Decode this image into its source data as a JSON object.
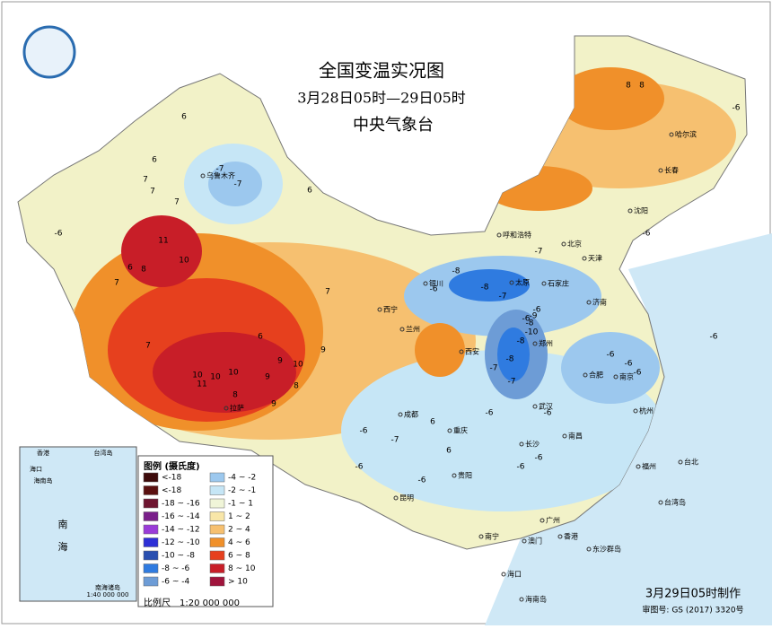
{
  "header": {
    "title": "全国变温实况图",
    "period": "3月28日05时—29日05时",
    "agency": "中央气象台"
  },
  "legend": {
    "title": "图例 (摄氏度)",
    "items": [
      {
        "label": "<-18",
        "color": "#3d0a0a"
      },
      {
        "label": "<-18",
        "color": "#5a1010"
      },
      {
        "label": "-18 ~ -16",
        "color": "#6e1530"
      },
      {
        "label": "-16 ~ -14",
        "color": "#7a1f8a"
      },
      {
        "label": "-14 ~ -12",
        "color": "#9a3cd8"
      },
      {
        "label": "-12 ~ -10",
        "color": "#2d2fd6"
      },
      {
        "label": "-10 ~ -8",
        "color": "#2a4fb0"
      },
      {
        "label": "-8 ~ -6",
        "color": "#2f7be0"
      },
      {
        "label": "-6 ~ -4",
        "color": "#6d9cd6"
      },
      {
        "label": "-4 ~ -2",
        "color": "#9cc8ee"
      },
      {
        "label": "-2 ~ -1",
        "color": "#c6e6f6"
      },
      {
        "label": "-1 ~ 1",
        "color": "#f0f5d8"
      },
      {
        "label": "1 ~ 2",
        "color": "#f8e6a8"
      },
      {
        "label": "2 ~ 4",
        "color": "#f6c070"
      },
      {
        "label": "4 ~ 6",
        "color": "#f0902a"
      },
      {
        "label": "6 ~ 8",
        "color": "#e6401e"
      },
      {
        "label": "8 ~ 10",
        "color": "#c81e28"
      },
      {
        "label": "> 10",
        "color": "#a0143c"
      }
    ]
  },
  "scale": "比例尺　1:20 000 000",
  "footer": {
    "made": "3月29日05时制作",
    "approval": "审图号: GS (2017) 3320号"
  },
  "inset": {
    "labels": [
      "香港",
      "台湾岛",
      "海口",
      "海南岛",
      "南",
      "海",
      "南海诸岛",
      "1:40 000 000"
    ]
  },
  "cities": [
    "乌鲁木齐",
    "呼和浩特",
    "北京",
    "天津",
    "石家庄",
    "太原",
    "银川",
    "西宁",
    "兰州",
    "西安",
    "郑州",
    "济南",
    "南京",
    "合肥",
    "武汉",
    "杭州",
    "南昌",
    "长沙",
    "福州",
    "台北",
    "广州",
    "南宁",
    "贵阳",
    "重庆",
    "成都",
    "拉萨",
    "昆明",
    "哈尔滨",
    "长春",
    "沈阳",
    "海口",
    "海南岛",
    "澳门",
    "香港",
    "东沙群岛",
    "台湾岛"
  ],
  "anomalies": [
    6,
    6,
    7,
    7,
    6,
    -7,
    -7,
    7,
    11,
    10,
    6,
    8,
    7,
    7,
    9,
    10,
    10,
    11,
    10,
    8,
    9,
    9,
    8,
    10,
    7,
    9,
    6,
    -6,
    8,
    8,
    -6,
    -7,
    -8,
    -6,
    -8,
    -7,
    -6,
    -6,
    -8,
    -8,
    -8,
    -9,
    -10,
    -7,
    -7,
    -6,
    -6,
    -6,
    -6,
    -6,
    -6,
    -6,
    -7,
    6,
    6,
    -6,
    -6,
    -6,
    -6,
    -6
  ]
}
